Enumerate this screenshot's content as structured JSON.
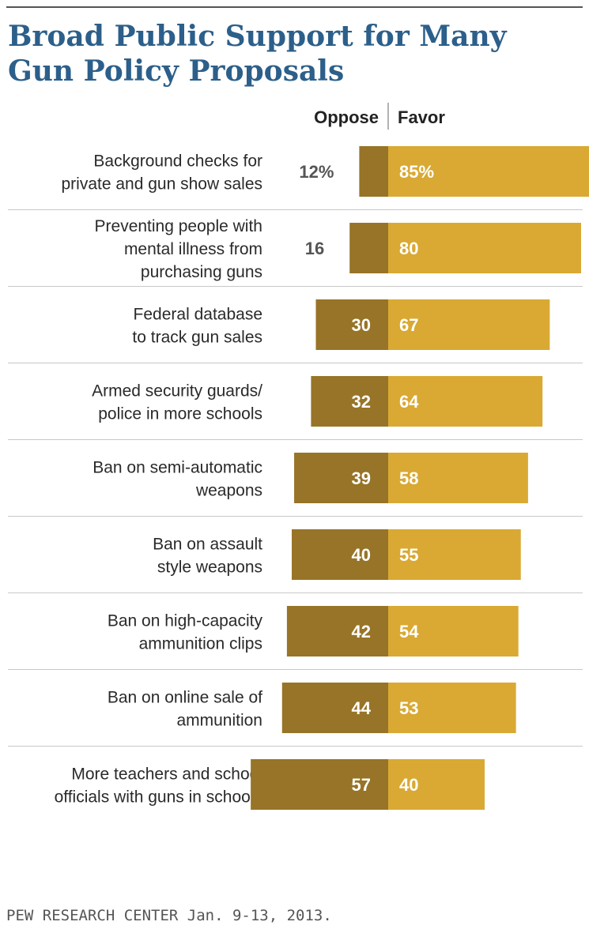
{
  "chart_data": {
    "type": "bar",
    "stacked": "diverging",
    "title": "Broad Public Support for Many Gun Policy Proposals",
    "column_headers": {
      "oppose": "Oppose",
      "favor": "Favor"
    },
    "categories": [
      [
        "Background checks for",
        "private and gun show sales"
      ],
      [
        "Preventing people with",
        "mental illness from",
        "purchasing guns"
      ],
      [
        "Federal database",
        "to track gun sales"
      ],
      [
        "Armed security guards/",
        "police in more schools"
      ],
      [
        "Ban on semi-automatic",
        "weapons"
      ],
      [
        "Ban on assault",
        "style weapons"
      ],
      [
        "Ban on high-capacity",
        "ammunition clips"
      ],
      [
        "Ban on online sale of",
        "ammunition"
      ],
      [
        "More teachers and school",
        "officials with guns in schools"
      ]
    ],
    "series": [
      {
        "name": "Oppose",
        "color": "#977427",
        "values": [
          12,
          16,
          30,
          32,
          39,
          40,
          42,
          44,
          57
        ],
        "labels": [
          "12%",
          "16",
          "30",
          "32",
          "39",
          "40",
          "42",
          "44",
          "57"
        ]
      },
      {
        "name": "Favor",
        "color": "#d9a933",
        "values": [
          85,
          80,
          67,
          64,
          58,
          55,
          54,
          53,
          40
        ],
        "labels": [
          "85%",
          "80",
          "67",
          "64",
          "58",
          "55",
          "54",
          "53",
          "40"
        ]
      }
    ],
    "units": "%"
  },
  "source": "PEW RESEARCH  CENTER Jan. 9-13, 2013."
}
